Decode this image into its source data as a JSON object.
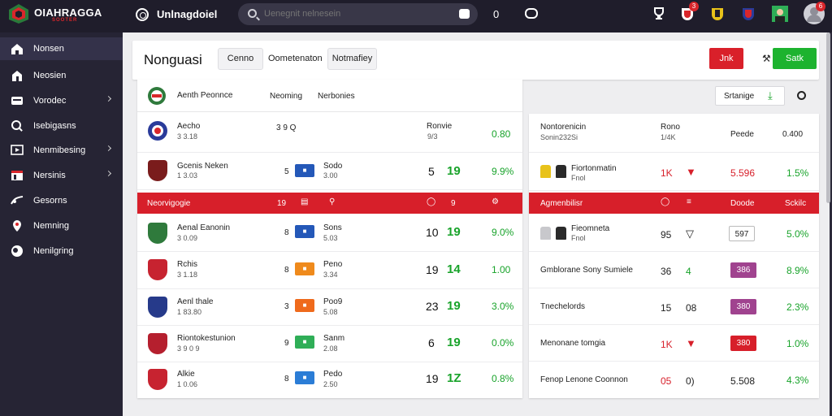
{
  "topbar": {
    "brand": "OIAHRAGGA",
    "brand_sub": "SOOTER",
    "title": "Unlnagdoiel",
    "search_placeholder": "Uenegnit nelnesein",
    "count": "0",
    "notif_badge": "3",
    "avatar_badge": "6",
    "colors": {
      "bg": "#1f1d2b",
      "accent": "#d9262b"
    }
  },
  "sidebar": {
    "items": [
      {
        "label": "Nonsen",
        "icon": "home-icon"
      },
      {
        "label": "Neosien",
        "icon": "house-icon"
      },
      {
        "label": "Vorodec",
        "icon": "inbox-icon"
      },
      {
        "label": "Isebigasns",
        "icon": "search-icon"
      },
      {
        "label": "Nenmibesing",
        "icon": "monitor-icon"
      },
      {
        "label": "Nersinis",
        "icon": "list-icon"
      },
      {
        "label": "Gesorns",
        "icon": "stats-icon"
      },
      {
        "label": "Nemning",
        "icon": "location-icon"
      },
      {
        "label": "Nenilgring",
        "icon": "ball-icon"
      }
    ]
  },
  "header": {
    "title": "Nonguasi",
    "tabs": [
      "Cenno",
      "Oometenaton",
      "Notmafiey"
    ],
    "red_button": "Jnk",
    "green_button": "Satk"
  },
  "left_panel": {
    "head_title": "Aenth Peonnce",
    "head_col1": "Neoming",
    "head_col2": "Nerbonies",
    "summary": {
      "name": "Aecho",
      "sub": "3 3.18",
      "mid": "3 9 Q",
      "col_label": "Ronvie",
      "col_sub": "9/3",
      "right": "0.80"
    },
    "featured": {
      "name": "Gcenis Neken",
      "sub": "1 3.03",
      "num": "5",
      "code": "Sodo",
      "code_sub": "3.00",
      "score": "5",
      "green": "19",
      "pct": "9.9%"
    },
    "section_bar": {
      "label": "Neorvigogie",
      "num": "19",
      "c5": "9"
    },
    "rows": [
      {
        "name": "Aenal Eanonin",
        "sub": "3 0.09",
        "num": "8",
        "code": "Sons",
        "code_sub": "5.03",
        "score": "10",
        "green": "19",
        "pct": "9.0%",
        "crest": "#2f7a3c",
        "chip": "#2458b8"
      },
      {
        "name": "Rchis",
        "sub": "3 1.18",
        "num": "8",
        "code": "Peno",
        "code_sub": "3.34",
        "score": "19",
        "green": "14",
        "pct": "1.00",
        "crest": "#c72330",
        "chip": "#ef8a1c"
      },
      {
        "name": "Aenl thale",
        "sub": "1 83.80",
        "num": "3",
        "code": "Poo9",
        "code_sub": "5.08",
        "score": "23",
        "green": "19",
        "pct": "3.0%",
        "crest": "#263a8a",
        "chip": "#ef6a1c"
      },
      {
        "name": "Riontokestunion",
        "sub": "3 9 0 9",
        "num": "9",
        "code": "Sanm",
        "code_sub": "2.08",
        "score": "6",
        "green": "19",
        "pct": "0.0%",
        "crest": "#b51f2e",
        "chip": "#2fae57"
      },
      {
        "name": "Alkie",
        "sub": "1 0.06",
        "num": "8",
        "code": "Pedo",
        "code_sub": "2.50",
        "score": "19",
        "green": "1Z",
        "pct": "0.8%",
        "crest": "#c72330",
        "chip": "#2b7dd6"
      }
    ]
  },
  "right_panel": {
    "toolbar_label": "Srtanige",
    "summary": {
      "name": "Nontorenicin",
      "sub": "Sonin232Si",
      "col": "Rono",
      "col_sub": "1/4K",
      "col2": "Peede",
      "right": "0.400"
    },
    "featured": {
      "name": "Fiortonmatin",
      "sub": "Fnol",
      "num": "1K",
      "val": "5.596",
      "pct": "1.5%"
    },
    "section_bar": {
      "label": "Agmenbilisr",
      "c3": "Doode",
      "c4": "Sckilc"
    },
    "rows": [
      {
        "name": "Fieomneta",
        "sub": "Fnol",
        "num": "95",
        "pill": "597",
        "pill_color": "#ffffff",
        "pct": "5.0%"
      },
      {
        "name": "Gmblorane Sony Sumiele",
        "num": "3⁠6",
        "mark": "4",
        "pill": "386",
        "pill_color": "#a0438f",
        "pct": "8.9%"
      },
      {
        "name": "Tnechelords",
        "num": "15",
        "mark": "08",
        "pill": "380",
        "pill_color": "#a0438f",
        "pct": "2.3%"
      },
      {
        "name": "Menonane tomgia",
        "num": "1K",
        "mark": "",
        "pill": "380",
        "pill_color": "#d71f2a",
        "pct": "1.0%"
      },
      {
        "name": "Fenop Lenone Coonnon",
        "num": "05",
        "mark": "0)",
        "pill": "5.508",
        "pill_color": "",
        "pct": "4.3%"
      }
    ]
  }
}
